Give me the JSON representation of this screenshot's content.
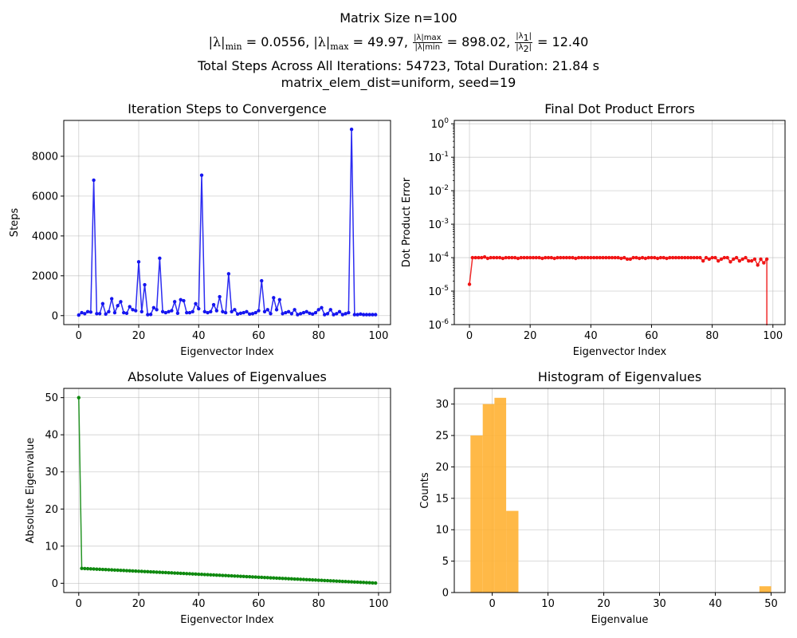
{
  "header": {
    "line1": "Matrix Size n=100",
    "lambda_min_label": "|λ|min",
    "lambda_min_value": "0.0556",
    "lambda_max_label": "|λ|max",
    "lambda_max_value": "49.97",
    "ratio_value": "898.02",
    "ratio12_value": "12.40",
    "line3": "Total Steps Across All Iterations: 54723, Total Duration: 21.84 s",
    "line4": "matrix_elem_dist=uniform, seed=19"
  },
  "chart_data": [
    {
      "type": "line",
      "title": "Iteration Steps to Convergence",
      "xlabel": "Eigenvector Index",
      "ylabel": "Steps",
      "color": "#1515f0",
      "xlim": [
        -5,
        104
      ],
      "ylim": [
        -450,
        9800
      ],
      "xticks": [
        0,
        20,
        40,
        60,
        80,
        100
      ],
      "yticks": [
        0,
        2000,
        4000,
        6000,
        8000
      ],
      "grid": true,
      "x": [
        0,
        1,
        2,
        3,
        4,
        5,
        6,
        7,
        8,
        9,
        10,
        11,
        12,
        13,
        14,
        15,
        16,
        17,
        18,
        19,
        20,
        21,
        22,
        23,
        24,
        25,
        26,
        27,
        28,
        29,
        30,
        31,
        32,
        33,
        34,
        35,
        36,
        37,
        38,
        39,
        40,
        41,
        42,
        43,
        44,
        45,
        46,
        47,
        48,
        49,
        50,
        51,
        52,
        53,
        54,
        55,
        56,
        57,
        58,
        59,
        60,
        61,
        62,
        63,
        64,
        65,
        66,
        67,
        68,
        69,
        70,
        71,
        72,
        73,
        74,
        75,
        76,
        77,
        78,
        79,
        80,
        81,
        82,
        83,
        84,
        85,
        86,
        87,
        88,
        89,
        90,
        91,
        92,
        93,
        94,
        95,
        96,
        97,
        98,
        99
      ],
      "values": [
        30,
        150,
        100,
        200,
        180,
        6800,
        100,
        100,
        600,
        80,
        200,
        850,
        150,
        500,
        700,
        150,
        120,
        450,
        300,
        250,
        2700,
        200,
        1550,
        50,
        60,
        400,
        300,
        2880,
        200,
        150,
        200,
        250,
        700,
        120,
        800,
        750,
        150,
        150,
        200,
        600,
        350,
        7050,
        200,
        150,
        200,
        550,
        250,
        950,
        200,
        150,
        2100,
        200,
        300,
        80,
        120,
        150,
        200,
        80,
        100,
        150,
        250,
        1750,
        200,
        300,
        100,
        900,
        300,
        800,
        100,
        150,
        200,
        100,
        300,
        50,
        100,
        150,
        200,
        120,
        80,
        150,
        300,
        400,
        50,
        100,
        300,
        50,
        100,
        200,
        50,
        100,
        150,
        9350,
        50,
        50,
        80,
        50,
        50,
        50,
        50,
        50
      ]
    },
    {
      "type": "line",
      "title": "Final Dot Product Errors",
      "xlabel": "Eigenvector Index",
      "ylabel": "Dot Product Error",
      "yscale": "log",
      "color": "#f01515",
      "xlim": [
        -5,
        104
      ],
      "ylim_log10": [
        -6,
        0.1
      ],
      "xticks": [
        0,
        20,
        40,
        60,
        80,
        100
      ],
      "ytick_labels": [
        "10",
        "10",
        "10",
        "10",
        "10",
        "10",
        "10"
      ],
      "ytick_exponents": [
        "-6",
        "-5",
        "-4",
        "-3",
        "-2",
        "-1",
        "0"
      ],
      "grid": true,
      "x": [
        0,
        1,
        2,
        3,
        4,
        5,
        6,
        7,
        8,
        9,
        10,
        11,
        12,
        13,
        14,
        15,
        16,
        17,
        18,
        19,
        20,
        21,
        22,
        23,
        24,
        25,
        26,
        27,
        28,
        29,
        30,
        31,
        32,
        33,
        34,
        35,
        36,
        37,
        38,
        39,
        40,
        41,
        42,
        43,
        44,
        45,
        46,
        47,
        48,
        49,
        50,
        51,
        52,
        53,
        54,
        55,
        56,
        57,
        58,
        59,
        60,
        61,
        62,
        63,
        64,
        65,
        66,
        67,
        68,
        69,
        70,
        71,
        72,
        73,
        74,
        75,
        76,
        77,
        78,
        79,
        80,
        81,
        82,
        83,
        84,
        85,
        86,
        87,
        88,
        89,
        90,
        91,
        92,
        93,
        94,
        95,
        96,
        97,
        98
      ],
      "values": [
        1.6e-05,
        0.0001,
        0.0001,
        0.0001,
        0.0001,
        0.000105,
        9.5e-05,
        0.0001,
        0.0001,
        0.0001,
        0.0001,
        9.5e-05,
        0.0001,
        0.0001,
        0.0001,
        0.0001,
        9.5e-05,
        0.0001,
        0.0001,
        0.0001,
        0.0001,
        0.0001,
        0.0001,
        0.0001,
        9.5e-05,
        0.0001,
        0.0001,
        0.0001,
        9.5e-05,
        0.0001,
        0.0001,
        0.0001,
        0.0001,
        0.0001,
        0.0001,
        9.5e-05,
        0.0001,
        0.0001,
        0.0001,
        0.0001,
        0.0001,
        0.0001,
        0.0001,
        0.0001,
        0.0001,
        0.0001,
        0.0001,
        0.0001,
        0.0001,
        0.0001,
        9.5e-05,
        0.0001,
        9e-05,
        9e-05,
        0.0001,
        0.0001,
        9.5e-05,
        0.0001,
        9.5e-05,
        0.0001,
        0.0001,
        0.0001,
        9.5e-05,
        0.0001,
        0.0001,
        9.5e-05,
        0.0001,
        0.0001,
        0.0001,
        0.0001,
        0.0001,
        0.0001,
        0.0001,
        0.0001,
        0.0001,
        0.0001,
        0.0001,
        8e-05,
        0.0001,
        9e-05,
        0.0001,
        0.0001,
        8e-05,
        9e-05,
        0.0001,
        0.0001,
        7.5e-05,
        9e-05,
        0.0001,
        8e-05,
        9e-05,
        0.0001,
        8e-05,
        8e-05,
        9e-05,
        6e-05,
        9e-05,
        7e-05,
        9e-05
      ],
      "final_drop_to": 1e-06
    },
    {
      "type": "line",
      "title": "Absolute Values of Eigenvalues",
      "xlabel": "Eigenvector Index",
      "ylabel": "Absolute Eigenvalue",
      "color": "#108a10",
      "xlim": [
        -5,
        104
      ],
      "ylim": [
        -2.5,
        52.5
      ],
      "xticks": [
        0,
        20,
        40,
        60,
        80,
        100
      ],
      "yticks": [
        0,
        10,
        20,
        30,
        40,
        50
      ],
      "grid": true,
      "first_value": 50,
      "tail_start": 4.0,
      "tail_end": 0.06,
      "count": 100
    },
    {
      "type": "bar",
      "title": "Histogram of Eigenvalues",
      "xlabel": "Eigenvalue",
      "ylabel": "Counts",
      "color": "#ffb133",
      "xlim": [
        -6.8,
        52.5
      ],
      "ylim": [
        0,
        32.5
      ],
      "xticks": [
        0,
        10,
        20,
        30,
        40,
        50
      ],
      "yticks": [
        0,
        5,
        10,
        15,
        20,
        25,
        30
      ],
      "grid": true,
      "bins": [
        {
          "x0": -3.9,
          "x1": -1.7,
          "count": 25
        },
        {
          "x0": -1.7,
          "x1": 0.4,
          "count": 30
        },
        {
          "x0": 0.4,
          "x1": 2.5,
          "count": 31
        },
        {
          "x0": 2.5,
          "x1": 4.7,
          "count": 13
        },
        {
          "x0": 47.9,
          "x1": 50.0,
          "count": 1
        }
      ]
    }
  ]
}
